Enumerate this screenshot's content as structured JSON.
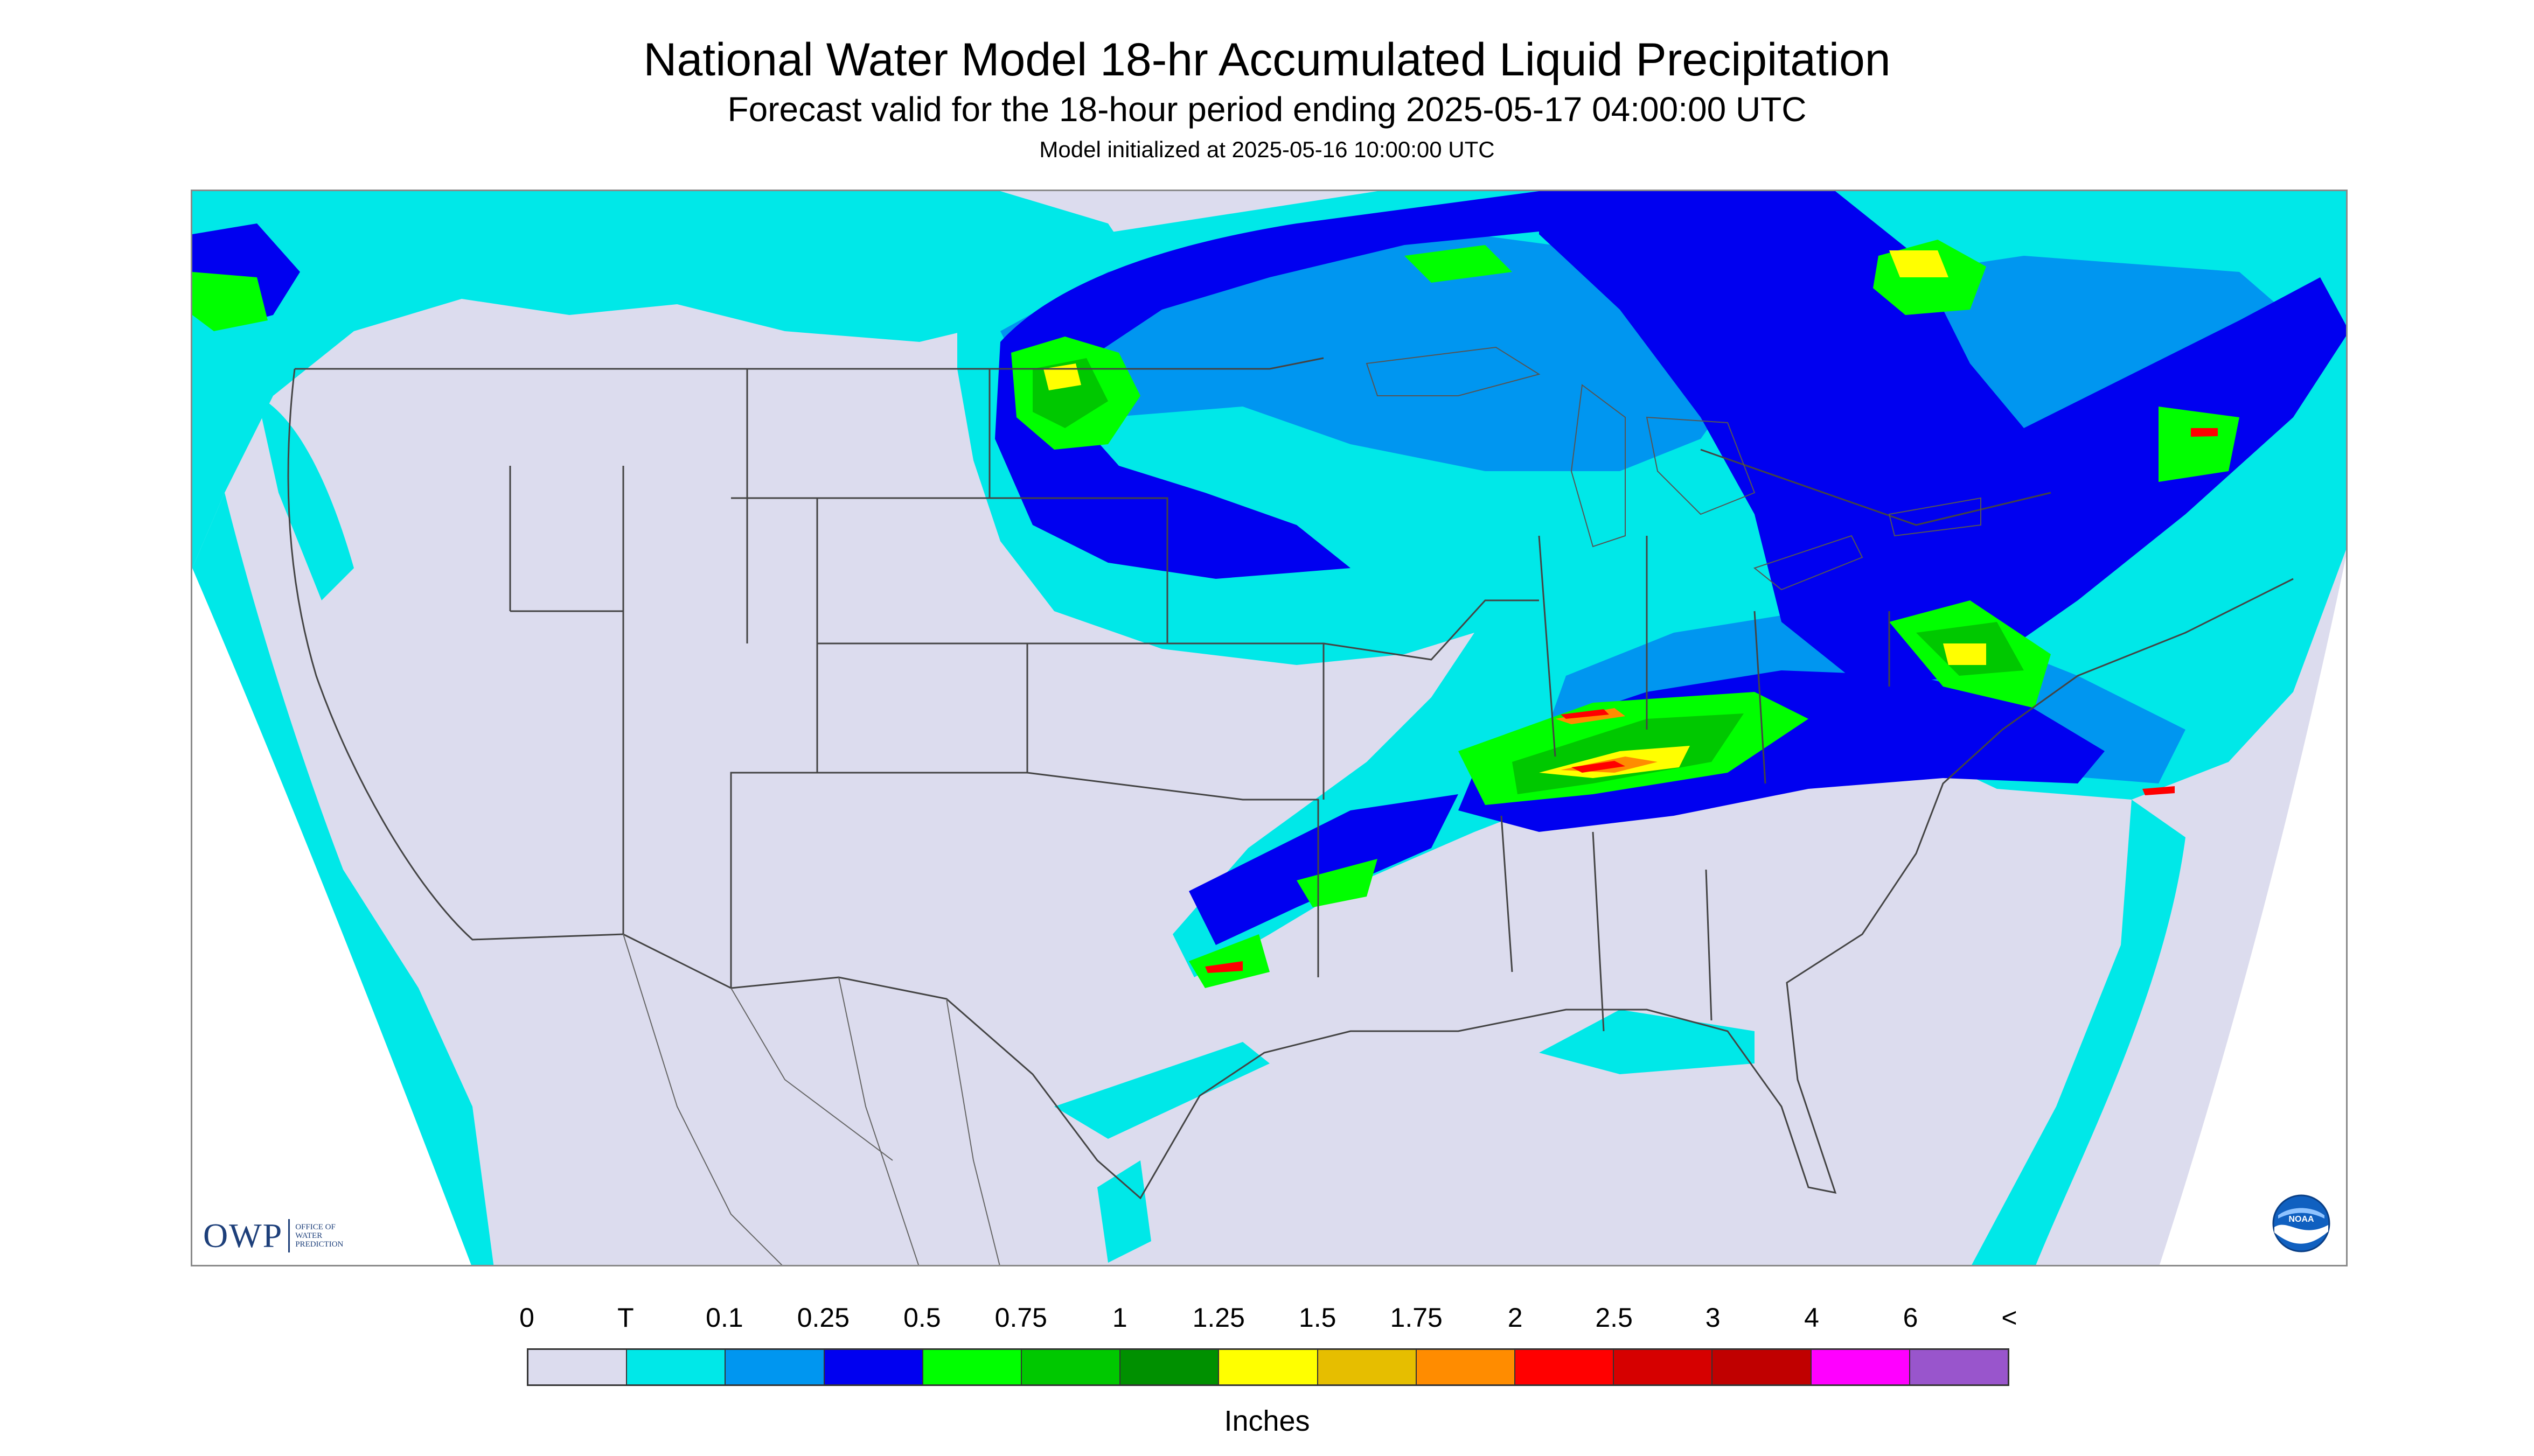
{
  "header": {
    "title": "National Water Model 18-hr Accumulated Liquid Precipitation",
    "subtitle": "Forecast valid for the 18-hour period ending 2025-05-17 04:00:00 UTC",
    "init": "Model initialized at 2025-05-16 10:00:00 UTC"
  },
  "logos": {
    "owp_text": "OWP",
    "owp_sub_1": "OFFICE OF",
    "owp_sub_2": "WATER",
    "owp_sub_3": "PREDICTION",
    "noaa_text": "NOAA"
  },
  "legend": {
    "labels": [
      "0",
      "T",
      "0.1",
      "0.25",
      "0.5",
      "0.75",
      "1",
      "1.25",
      "1.5",
      "1.75",
      "2",
      "2.5",
      "3",
      "4",
      "6",
      "<"
    ],
    "colors": [
      "#dcdcee",
      "#00e8e8",
      "#0096f0",
      "#0000f0",
      "#00ff00",
      "#00c800",
      "#009000",
      "#ffff00",
      "#e6be00",
      "#ff8c00",
      "#ff0000",
      "#d60000",
      "#c00000",
      "#ff00ff",
      "#9955cc"
    ],
    "units": "Inches"
  },
  "map": {
    "background_color": "#dcdcee",
    "border_color": "#444444"
  }
}
